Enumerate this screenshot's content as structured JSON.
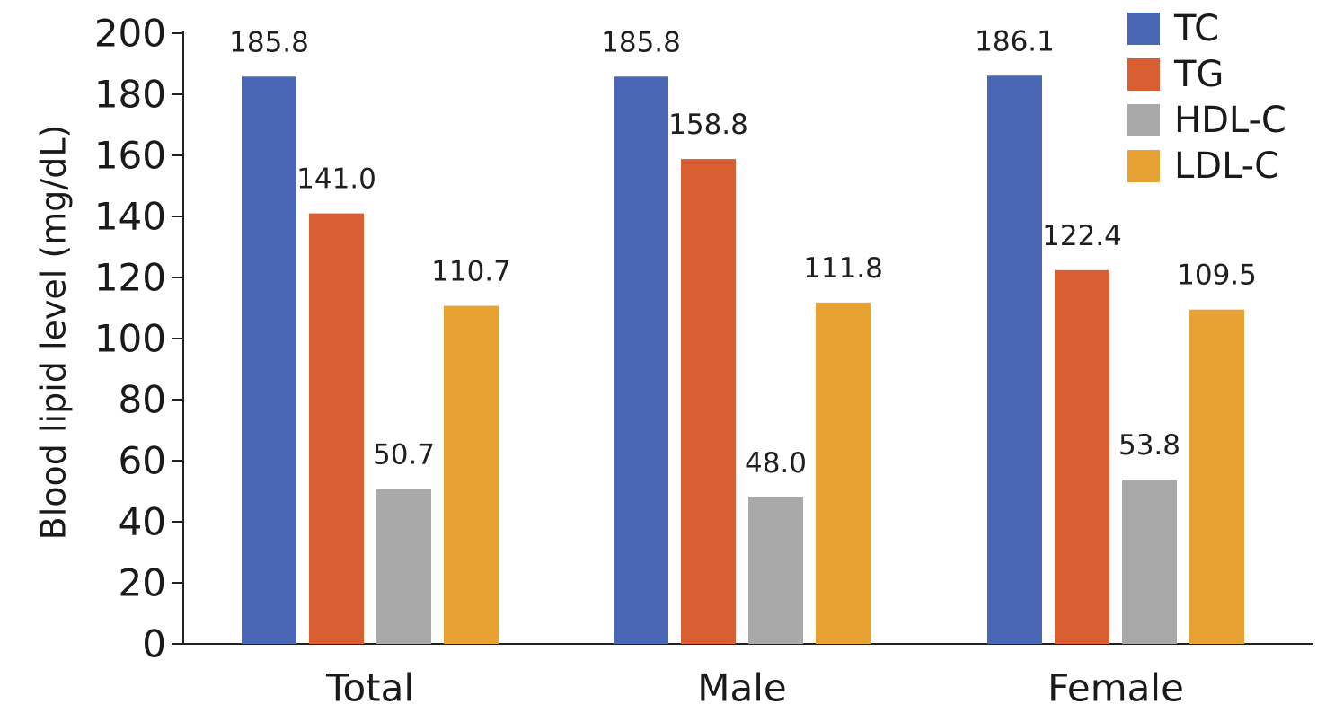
{
  "chart_data": {
    "type": "bar",
    "categories": [
      "Total",
      "Male",
      "Female"
    ],
    "series": [
      {
        "name": "TC",
        "values": [
          185.8,
          185.8,
          186.1
        ]
      },
      {
        "name": "TG",
        "values": [
          141.0,
          158.8,
          122.4
        ]
      },
      {
        "name": "HDL-C",
        "values": [
          50.7,
          48.0,
          53.8
        ]
      },
      {
        "name": "LDL-C",
        "values": [
          110.7,
          111.8,
          109.5
        ]
      }
    ],
    "value_labels": [
      [
        "185.8",
        "185.8",
        "186.1"
      ],
      [
        "141.0",
        "158.8",
        "122.4"
      ],
      [
        "50.7",
        "48.0",
        "53.8"
      ],
      [
        "110.7",
        "111.8",
        "109.5"
      ]
    ],
    "title": "",
    "xlabel": "",
    "ylabel": "Blood lipid level (mg/dL)",
    "ylim": [
      0,
      200
    ],
    "yticks": [
      "0",
      "20",
      "40",
      "60",
      "80",
      "100",
      "120",
      "140",
      "160",
      "180",
      "200"
    ],
    "grid": false,
    "legend_position": "top-right",
    "colors": [
      "#4a67b6",
      "#d95f32",
      "#a9a9a9",
      "#e8a133"
    ]
  }
}
